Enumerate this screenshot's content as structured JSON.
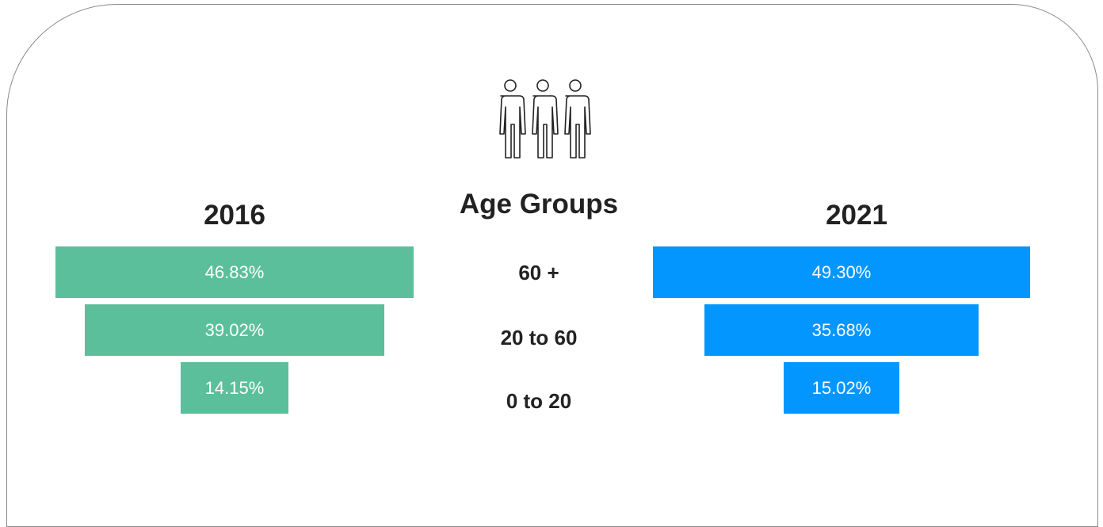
{
  "chart_data": {
    "type": "bar",
    "title": "Age Groups",
    "categories": [
      "60 +",
      "20 to 60",
      "0 to 20"
    ],
    "series": [
      {
        "name": "2016",
        "values": [
          46.83,
          39.02,
          14.15
        ],
        "labels": [
          "46.83%",
          "39.02%",
          "14.15%"
        ],
        "color": "#5cbf9c"
      },
      {
        "name": "2021",
        "values": [
          49.3,
          35.68,
          15.02
        ],
        "labels": [
          "49.30%",
          "35.68%",
          "15.02%"
        ],
        "color": "#0496ff"
      }
    ],
    "value_unit": "%",
    "orientation": "centered-funnel",
    "grid": false,
    "legend": "none"
  },
  "icon": "people-group-icon"
}
